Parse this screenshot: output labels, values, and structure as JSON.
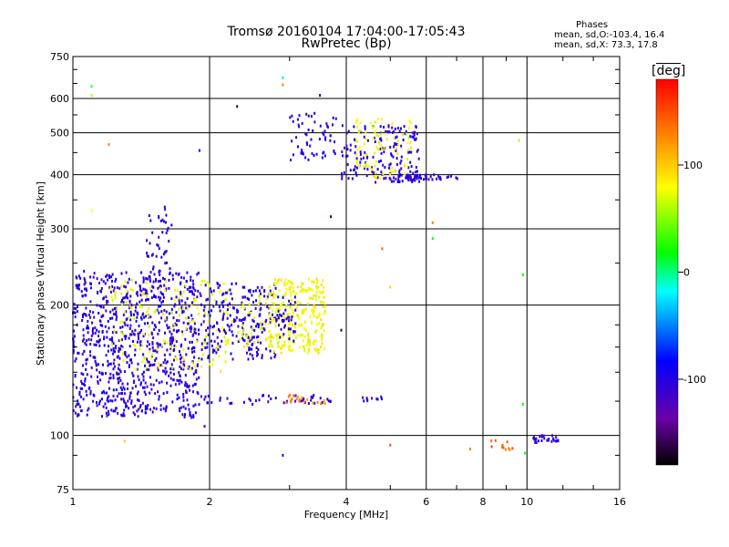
{
  "chart_data": {
    "type": "scatter",
    "title": "Tromsø 20160104 17:04:00-17:05:43",
    "subtitle": "RwPretec (Bp)",
    "xlabel": "Frequency [MHz]",
    "ylabel": "Stationary phase Virtual Height [km]",
    "x_scale": "log",
    "y_scale": "log",
    "xlim": [
      1,
      16
    ],
    "ylim": [
      75,
      750
    ],
    "x_ticks": [
      1,
      2,
      4,
      6,
      8,
      10,
      16
    ],
    "y_ticks": [
      75,
      100,
      200,
      300,
      400,
      500,
      600,
      750
    ],
    "x_minor_ticks": [
      3,
      5,
      7,
      9,
      12,
      14
    ],
    "y_minor_ticks": [
      90,
      120,
      140,
      160,
      180,
      250,
      350,
      450,
      550,
      650,
      700
    ],
    "grid": true,
    "colorbar": {
      "label": "deg",
      "ticks": [
        100,
        0,
        -100
      ],
      "range": [
        -180,
        180
      ],
      "colormap": [
        "#000000",
        "#6a00a8",
        "#0000ff",
        "#00ffff",
        "#00ff00",
        "#ffff00",
        "#ff8000",
        "#ff0000"
      ]
    },
    "legend": {
      "title": "Phases",
      "line1": "mean, sd,O:-103.4, 16.4",
      "line2": "mean, sd,X:  73.3, 17.8"
    },
    "series": [
      {
        "clusters": [
          {
            "x": [
              1.0,
              1.9
            ],
            "y": [
              110,
              240
            ],
            "n": 900,
            "phase": -103
          },
          {
            "x": [
              1.2,
              2.2
            ],
            "y": [
              140,
              230
            ],
            "n": 160,
            "phase": 75
          },
          {
            "x": [
              1.45,
              1.65
            ],
            "y": [
              240,
              340
            ],
            "n": 40,
            "phase": -103
          },
          {
            "x": [
              1.9,
              2.8
            ],
            "y": [
              150,
              225
            ],
            "n": 220,
            "phase": -103
          },
          {
            "x": [
              2.1,
              2.9
            ],
            "y": [
              160,
              210
            ],
            "n": 60,
            "phase": 75
          },
          {
            "x": [
              2.7,
              3.6
            ],
            "y": [
              155,
              230
            ],
            "n": 260,
            "phase": 80
          },
          {
            "x": [
              2.8,
              3.1
            ],
            "y": [
              165,
              210
            ],
            "n": 40,
            "phase": -103
          },
          {
            "x": [
              3.0,
              3.8
            ],
            "y": [
              430,
              560
            ],
            "n": 60,
            "phase": -103
          },
          {
            "x": [
              3.9,
              5.8
            ],
            "y": [
              380,
              520
            ],
            "n": 160,
            "phase": -103
          },
          {
            "x": [
              4.2,
              5.6
            ],
            "y": [
              390,
              540
            ],
            "n": 80,
            "phase": 80
          },
          {
            "x": [
              5.0,
              5.8
            ],
            "y": [
              385,
              400
            ],
            "n": 40,
            "phase": -103
          },
          {
            "x": [
              5.8,
              7.2
            ],
            "y": [
              390,
              400
            ],
            "n": 25,
            "phase": -103
          },
          {
            "x": [
              1.9,
              3.7
            ],
            "y": [
              118,
              124
            ],
            "n": 45,
            "phase": -103
          },
          {
            "x": [
              2.9,
              3.6
            ],
            "y": [
              118,
              124
            ],
            "n": 20,
            "phase": 130
          },
          {
            "x": [
              4.3,
              4.8
            ],
            "y": [
              120,
              123
            ],
            "n": 10,
            "phase": -103
          },
          {
            "x": [
              10.2,
              11.8
            ],
            "y": [
              96,
              100
            ],
            "n": 30,
            "phase": -103
          },
          {
            "x": [
              8.3,
              9.4
            ],
            "y": [
              92,
              98
            ],
            "n": 12,
            "phase": 140
          }
        ]
      }
    ],
    "isolated_points": [
      {
        "x": 1.1,
        "y": 640,
        "phase": 0
      },
      {
        "x": 1.1,
        "y": 610,
        "phase": 60
      },
      {
        "x": 1.2,
        "y": 470,
        "phase": 130
      },
      {
        "x": 1.1,
        "y": 330,
        "phase": 80
      },
      {
        "x": 1.9,
        "y": 455,
        "phase": -103
      },
      {
        "x": 2.3,
        "y": 575,
        "phase": -160
      },
      {
        "x": 2.9,
        "y": 670,
        "phase": 0
      },
      {
        "x": 2.9,
        "y": 645,
        "phase": 130
      },
      {
        "x": 3.5,
        "y": 610,
        "phase": -103
      },
      {
        "x": 3.7,
        "y": 320,
        "phase": -160
      },
      {
        "x": 4.8,
        "y": 270,
        "phase": 140
      },
      {
        "x": 5.0,
        "y": 220,
        "phase": 60
      },
      {
        "x": 6.2,
        "y": 310,
        "phase": 130
      },
      {
        "x": 6.2,
        "y": 285,
        "phase": 20
      },
      {
        "x": 9.6,
        "y": 480,
        "phase": 60
      },
      {
        "x": 9.8,
        "y": 235,
        "phase": 20
      },
      {
        "x": 9.8,
        "y": 118,
        "phase": 20
      },
      {
        "x": 9.9,
        "y": 91,
        "phase": 20
      },
      {
        "x": 7.5,
        "y": 93,
        "phase": 130
      },
      {
        "x": 3.9,
        "y": 175,
        "phase": -160
      },
      {
        "x": 5.0,
        "y": 95,
        "phase": 150
      },
      {
        "x": 2.9,
        "y": 90,
        "phase": -103
      },
      {
        "x": 1.95,
        "y": 105,
        "phase": -103
      },
      {
        "x": 1.3,
        "y": 97,
        "phase": 100
      }
    ]
  }
}
